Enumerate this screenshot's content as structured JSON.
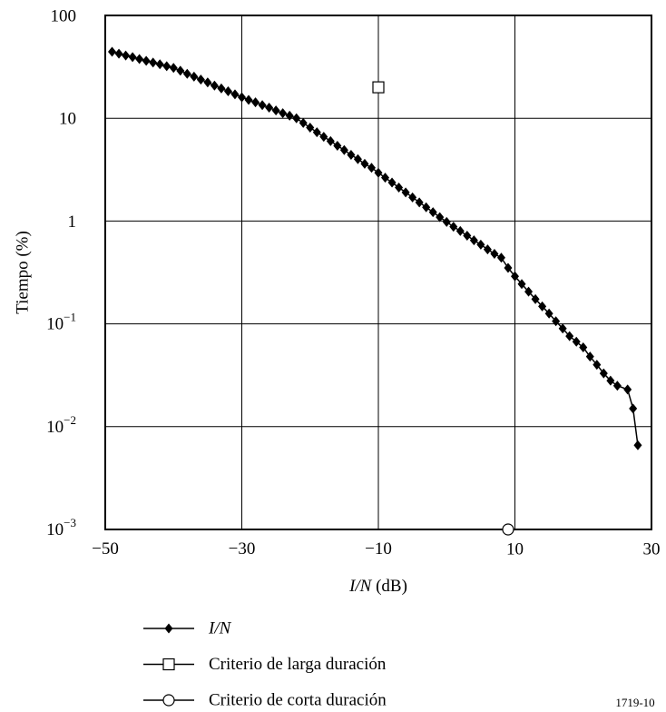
{
  "chart_data": {
    "type": "line",
    "xlabel": "I/N (dB)",
    "ylabel": "Tiempo (%)",
    "xlim": [
      -50,
      30
    ],
    "xticks": [
      {
        "value": -50,
        "label": "−50"
      },
      {
        "value": -30,
        "label": "−30"
      },
      {
        "value": -10,
        "label": "−10"
      },
      10,
      30
    ],
    "ylim": [
      0.001,
      100
    ],
    "ylog": true,
    "yticks": [
      {
        "value": 0.001,
        "label": "10",
        "exponent": "−3"
      },
      {
        "value": 0.01,
        "label": "10",
        "exponent": "−2"
      },
      {
        "value": 0.1,
        "label": "10",
        "exponent": "−1"
      },
      1,
      10,
      100
    ],
    "grid": true,
    "legend": "bottom",
    "series": [
      {
        "name": "I/N",
        "color": "#000000",
        "marker": "diamond",
        "x": [
          -49,
          -48,
          -47,
          -46,
          -45,
          -44,
          -43,
          -42,
          -41,
          -40,
          -39,
          -38,
          -37,
          -36,
          -35,
          -34,
          -33,
          -32,
          -31,
          -30,
          -29,
          -28,
          -27,
          -26,
          -25,
          -24,
          -23,
          -22,
          -21,
          -20,
          -19,
          -18,
          -17,
          -16,
          -15,
          -14,
          -13,
          -12,
          -11,
          -10,
          -9,
          -8,
          -7,
          -6,
          -5,
          -4,
          -3,
          -2,
          -1,
          0,
          1,
          2,
          3,
          4,
          5,
          6,
          7,
          8,
          9,
          10,
          11,
          12,
          13,
          14,
          15,
          16,
          17,
          18,
          19,
          20,
          21,
          22,
          23,
          24,
          25,
          26.5,
          27.3,
          28
        ],
        "values": [
          44.3,
          42.5,
          40.8,
          39.3,
          37.7,
          36.2,
          34.8,
          33.5,
          32.1,
          30.9,
          29.0,
          27.1,
          25.4,
          23.8,
          22.3,
          20.8,
          19.5,
          18.3,
          17.1,
          16.0,
          15.1,
          14.3,
          13.4,
          12.7,
          11.9,
          11.2,
          10.6,
          10,
          9.0,
          8.1,
          7.3,
          6.6,
          6.0,
          5.4,
          4.9,
          4.4,
          4.0,
          3.6,
          3.3,
          2.95,
          2.64,
          2.37,
          2.12,
          1.9,
          1.7,
          1.52,
          1.36,
          1.22,
          1.09,
          0.98,
          0.88,
          0.8,
          0.72,
          0.65,
          0.59,
          0.53,
          0.48,
          0.44,
          0.35,
          0.29,
          0.244,
          0.206,
          0.174,
          0.148,
          0.126,
          0.106,
          0.09,
          0.076,
          0.067,
          0.059,
          0.048,
          0.04,
          0.033,
          0.028,
          0.025,
          0.023,
          0.015,
          0.0066
        ]
      },
      {
        "name": "Criterio de larga duración",
        "color": "#000000",
        "marker": "square",
        "x": [
          -10
        ],
        "values": [
          20
        ]
      },
      {
        "name": "Criterio de corta duración",
        "color": "#000000",
        "marker": "circle",
        "x": [
          9
        ],
        "values": [
          0.001
        ]
      }
    ],
    "footnote": "1719-10"
  }
}
